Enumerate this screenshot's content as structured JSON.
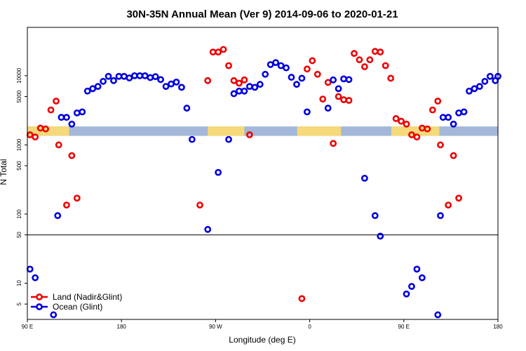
{
  "chart_data": {
    "type": "scatter",
    "title": "30N-35N Annual Mean (Ver 9)   2014-09-06 to 2020-01-21",
    "xlabel": "Longitude (deg E)",
    "ylabel": "N Total",
    "x_scale": "linear",
    "y_scale": "log",
    "xlim": [
      90,
      540
    ],
    "ylim": [
      3,
      50000
    ],
    "x_ticks": [
      {
        "value": 90,
        "label": "90 E"
      },
      {
        "value": 180,
        "label": "180"
      },
      {
        "value": 270,
        "label": "90 W"
      },
      {
        "value": 360,
        "label": "0"
      },
      {
        "value": 450,
        "label": "90 E"
      },
      {
        "value": 540,
        "label": "180"
      }
    ],
    "y_ticks": [
      {
        "value": 5,
        "label": "5"
      },
      {
        "value": 10,
        "label": "10"
      },
      {
        "value": 50,
        "label": "50"
      },
      {
        "value": 100,
        "label": "100"
      },
      {
        "value": 500,
        "label": "500"
      },
      {
        "value": 1000,
        "label": "1000"
      },
      {
        "value": 5000,
        "label": "5000"
      },
      {
        "value": 10000,
        "label": "10000"
      }
    ],
    "reference_line": 50,
    "coastline_band": {
      "y_range": [
        1350,
        1850
      ],
      "ocean_color": "#a3b8d8",
      "land_color": "#f5d97a",
      "land_segments": [
        [
          90,
          130
        ],
        [
          262.5,
          297.5
        ],
        [
          348,
          390
        ],
        [
          438,
          484
        ]
      ]
    },
    "legend": {
      "position": "bottom-left"
    },
    "series": [
      {
        "name": "Land (Nadir&Glint)",
        "color": "#ee0000",
        "points": [
          [
            92.5,
            1400
          ],
          [
            97.5,
            1300
          ],
          [
            102.5,
            1750
          ],
          [
            107.5,
            1700
          ],
          [
            112.5,
            3200
          ],
          [
            117.5,
            4300
          ],
          [
            120,
            1000
          ],
          [
            127.5,
            135
          ],
          [
            132.5,
            700
          ],
          [
            137.5,
            170
          ],
          [
            255,
            135
          ],
          [
            262.5,
            8500
          ],
          [
            267.5,
            22000
          ],
          [
            272.5,
            22000
          ],
          [
            277.5,
            24000
          ],
          [
            282.5,
            14000
          ],
          [
            287.5,
            8500
          ],
          [
            292.5,
            7800
          ],
          [
            297.5,
            8700
          ],
          [
            302.5,
            1400
          ],
          [
            352.5,
            6
          ],
          [
            357.5,
            12500
          ],
          [
            362.5,
            16500
          ],
          [
            367.5,
            10500
          ],
          [
            372.5,
            4600
          ],
          [
            377.5,
            8000
          ],
          [
            382.5,
            1050
          ],
          [
            387.5,
            5000
          ],
          [
            392.5,
            4500
          ],
          [
            397.5,
            4400
          ],
          [
            402.5,
            21000
          ],
          [
            407.5,
            17000
          ],
          [
            412.5,
            13500
          ],
          [
            417.5,
            17000
          ],
          [
            422.5,
            22500
          ],
          [
            427.5,
            22000
          ],
          [
            432.5,
            14000
          ],
          [
            437.5,
            9200
          ],
          [
            442.5,
            2400
          ],
          [
            447.5,
            2200
          ],
          [
            452.5,
            2000
          ],
          [
            457.5,
            1400
          ],
          [
            462.5,
            1300
          ],
          [
            467.5,
            1750
          ],
          [
            472.5,
            1700
          ],
          [
            477.5,
            3200
          ],
          [
            482.5,
            4300
          ],
          [
            485,
            1000
          ],
          [
            492.5,
            135
          ],
          [
            497.5,
            700
          ],
          [
            502.5,
            170
          ]
        ]
      },
      {
        "name": "Ocean (Glint)",
        "color": "#0000dd",
        "points": [
          [
            92.5,
            16
          ],
          [
            97.5,
            12
          ],
          [
            115,
            3.5
          ],
          [
            119,
            95
          ],
          [
            122.5,
            2500
          ],
          [
            127.5,
            2500
          ],
          [
            132.5,
            2000
          ],
          [
            137.5,
            2900
          ],
          [
            142.5,
            3000
          ],
          [
            147.5,
            6000
          ],
          [
            152.5,
            6500
          ],
          [
            157.5,
            7000
          ],
          [
            162.5,
            8300
          ],
          [
            167.5,
            9800
          ],
          [
            172.5,
            8500
          ],
          [
            177.5,
            9800
          ],
          [
            182.5,
            9800
          ],
          [
            187.5,
            9300
          ],
          [
            192.5,
            10000
          ],
          [
            197.5,
            10000
          ],
          [
            202.5,
            10000
          ],
          [
            207.5,
            9400
          ],
          [
            212.5,
            9700
          ],
          [
            217.5,
            8800
          ],
          [
            222.5,
            7000
          ],
          [
            227.5,
            7600
          ],
          [
            232.5,
            8100
          ],
          [
            237.5,
            6800
          ],
          [
            242.5,
            3400
          ],
          [
            247.5,
            1200
          ],
          [
            262.5,
            60
          ],
          [
            272.5,
            400
          ],
          [
            282.5,
            1200
          ],
          [
            287.5,
            5500
          ],
          [
            292.5,
            6000
          ],
          [
            297.5,
            6000
          ],
          [
            302.5,
            7000
          ],
          [
            307.5,
            6800
          ],
          [
            312.5,
            7500
          ],
          [
            317.5,
            10500
          ],
          [
            322.5,
            14500
          ],
          [
            327.5,
            15500
          ],
          [
            332.5,
            14000
          ],
          [
            337.5,
            13000
          ],
          [
            342.5,
            9500
          ],
          [
            347.5,
            7500
          ],
          [
            352.5,
            9200
          ],
          [
            357.5,
            3000
          ],
          [
            377.5,
            3400
          ],
          [
            382.5,
            8700
          ],
          [
            387.5,
            6500
          ],
          [
            392.5,
            9000
          ],
          [
            397.5,
            8800
          ],
          [
            412.5,
            330
          ],
          [
            422.5,
            95
          ],
          [
            427.5,
            48
          ],
          [
            452.5,
            7
          ],
          [
            457.5,
            9
          ],
          [
            462.5,
            16
          ],
          [
            467.5,
            12
          ],
          [
            482.5,
            3.5
          ],
          [
            485,
            95
          ],
          [
            487.5,
            2500
          ],
          [
            492.5,
            2500
          ],
          [
            497.5,
            2000
          ],
          [
            502.5,
            2900
          ],
          [
            507.5,
            3000
          ],
          [
            512.5,
            6000
          ],
          [
            517.5,
            6500
          ],
          [
            522.5,
            7000
          ],
          [
            527.5,
            8300
          ],
          [
            532.5,
            9800
          ],
          [
            537.5,
            8500
          ],
          [
            540,
            9800
          ]
        ]
      }
    ]
  }
}
